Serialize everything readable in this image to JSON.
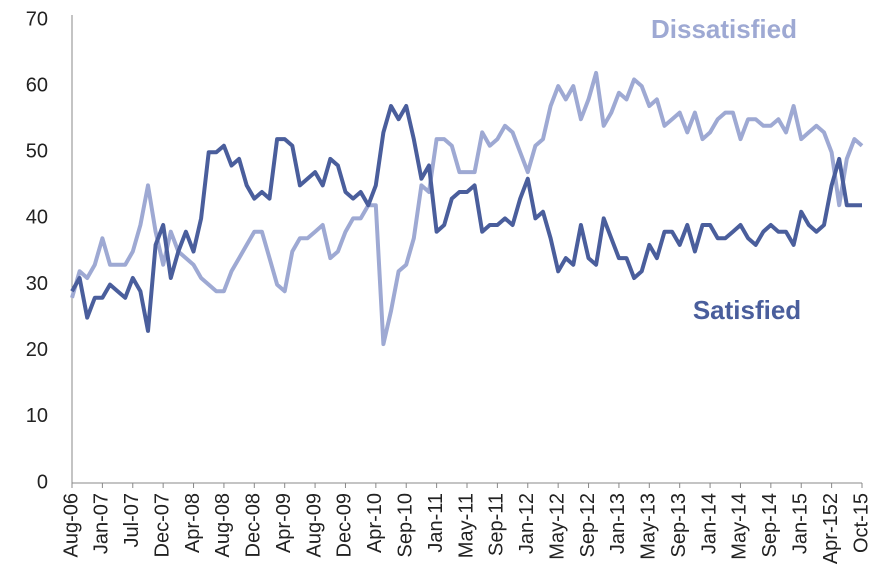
{
  "chart_data": {
    "type": "line",
    "categories": [
      "Aug-06",
      null,
      null,
      null,
      "Jan-07",
      null,
      null,
      null,
      "Jul-07",
      null,
      null,
      null,
      "Dec-07",
      null,
      null,
      null,
      "Apr-08",
      null,
      null,
      null,
      "Aug-08",
      null,
      null,
      null,
      "Dec-08",
      null,
      null,
      null,
      "Apr-09",
      null,
      null,
      null,
      "Aug-09",
      null,
      null,
      null,
      "Dec-09",
      null,
      null,
      null,
      "Apr-10",
      null,
      null,
      null,
      "Sep-10",
      null,
      null,
      null,
      "Jan-11",
      null,
      null,
      null,
      "May-11",
      null,
      null,
      null,
      "Sep-11",
      null,
      null,
      null,
      "Jan-12",
      null,
      null,
      null,
      "May-12",
      null,
      null,
      null,
      "Sep-12",
      null,
      null,
      null,
      "Jan-13",
      null,
      null,
      null,
      "May-13",
      null,
      null,
      null,
      "Sep-13",
      null,
      null,
      null,
      "Jan-14",
      null,
      null,
      null,
      "May-14",
      null,
      null,
      null,
      "Sep-14",
      null,
      null,
      null,
      "Jan-15",
      null,
      null,
      null,
      "Apr-152",
      null,
      null,
      null,
      "Oct-15"
    ],
    "series": [
      {
        "name": "Dissatisfied",
        "color": "#9ea9d3",
        "values": [
          28,
          32,
          31,
          33,
          37,
          33,
          33,
          33,
          35,
          39,
          45,
          38,
          33,
          38,
          35,
          34,
          33,
          31,
          30,
          29,
          29,
          32,
          34,
          36,
          38,
          38,
          34,
          30,
          29,
          35,
          37,
          37,
          38,
          39,
          34,
          35,
          38,
          40,
          40,
          42,
          42,
          21,
          26,
          32,
          33,
          37,
          45,
          44,
          52,
          52,
          51,
          47,
          47,
          47,
          53,
          51,
          52,
          54,
          53,
          50,
          47,
          51,
          52,
          57,
          60,
          58,
          60,
          55,
          58,
          62,
          54,
          56,
          59,
          58,
          61,
          60,
          57,
          58,
          54,
          55,
          56,
          53,
          56,
          52,
          53,
          55,
          56,
          56,
          52,
          55,
          55,
          54,
          54,
          55,
          53,
          57,
          52,
          53,
          54,
          53,
          50,
          42,
          49,
          52,
          51
        ]
      },
      {
        "name": "Satisfied",
        "color": "#4a5e9c",
        "values": [
          29,
          31,
          25,
          28,
          28,
          30,
          29,
          28,
          31,
          29,
          23,
          36,
          39,
          31,
          35,
          38,
          35,
          40,
          50,
          50,
          51,
          48,
          49,
          45,
          43,
          44,
          43,
          52,
          52,
          51,
          45,
          46,
          47,
          45,
          49,
          48,
          44,
          43,
          44,
          42,
          45,
          53,
          57,
          55,
          57,
          52,
          46,
          48,
          38,
          39,
          43,
          44,
          44,
          45,
          38,
          39,
          39,
          40,
          39,
          43,
          46,
          40,
          41,
          37,
          32,
          34,
          33,
          39,
          34,
          33,
          40,
          37,
          34,
          34,
          31,
          32,
          36,
          34,
          38,
          38,
          36,
          39,
          35,
          39,
          39,
          37,
          37,
          38,
          39,
          37,
          36,
          38,
          39,
          38,
          38,
          36,
          41,
          39,
          38,
          39,
          45,
          49,
          42,
          42,
          42
        ]
      }
    ],
    "ylim": [
      0,
      70
    ],
    "yticks": [
      0,
      10,
      20,
      30,
      40,
      50,
      60,
      70
    ]
  }
}
